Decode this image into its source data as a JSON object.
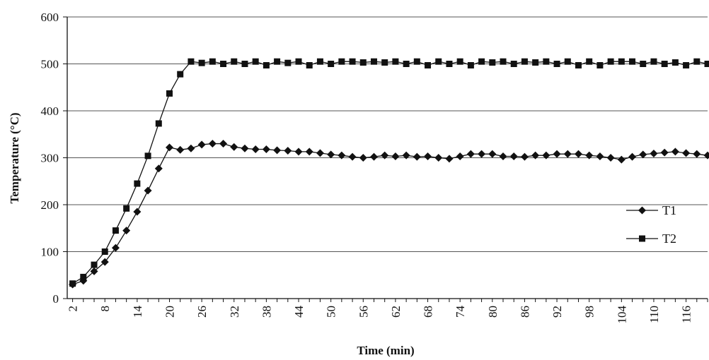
{
  "chart_data": {
    "type": "line",
    "title": "",
    "xlabel": "Time (min)",
    "ylabel": "Temperature (°C)",
    "ylim": [
      0,
      600
    ],
    "yticks": [
      0,
      100,
      200,
      300,
      400,
      500,
      600
    ],
    "xtick_labels": [
      "2",
      "8",
      "14",
      "20",
      "26",
      "32",
      "38",
      "44",
      "50",
      "56",
      "62",
      "68",
      "74",
      "80",
      "86",
      "92",
      "98",
      "104",
      "110",
      "116"
    ],
    "grid": "horizontal",
    "legend_position": "right",
    "x": [
      2,
      4,
      6,
      8,
      10,
      12,
      14,
      16,
      18,
      20,
      22,
      24,
      26,
      28,
      30,
      32,
      34,
      36,
      38,
      40,
      42,
      44,
      46,
      48,
      50,
      52,
      54,
      56,
      58,
      60,
      62,
      64,
      66,
      68,
      70,
      72,
      74,
      76,
      78,
      80,
      82,
      84,
      86,
      88,
      90,
      92,
      94,
      96,
      98,
      100,
      102,
      104,
      106,
      108,
      110,
      112,
      114,
      116,
      118,
      120
    ],
    "series": [
      {
        "name": "T1",
        "marker": "diamond",
        "values": [
          30,
          38,
          58,
          78,
          108,
          145,
          185,
          230,
          277,
          322,
          317,
          320,
          328,
          330,
          330,
          323,
          320,
          318,
          318,
          316,
          315,
          313,
          313,
          310,
          307,
          305,
          302,
          300,
          302,
          305,
          303,
          305,
          302,
          303,
          300,
          298,
          303,
          308,
          308,
          308,
          303,
          303,
          302,
          305,
          305,
          308,
          308,
          308,
          305,
          303,
          300,
          296,
          302,
          307,
          309,
          311,
          313,
          310,
          308,
          305
        ]
      },
      {
        "name": "T2",
        "marker": "square",
        "values": [
          32,
          46,
          72,
          100,
          145,
          192,
          245,
          304,
          373,
          437,
          478,
          505,
          502,
          505,
          500,
          505,
          500,
          505,
          497,
          505,
          502,
          505,
          497,
          505,
          500,
          505,
          505,
          503,
          505,
          503,
          505,
          500,
          505,
          497,
          505,
          500,
          505,
          497,
          505,
          503,
          505,
          500,
          505,
          503,
          505,
          500,
          505,
          497,
          505,
          497,
          505,
          505,
          505,
          500,
          505,
          500,
          503,
          497,
          505,
          500
        ]
      }
    ]
  }
}
